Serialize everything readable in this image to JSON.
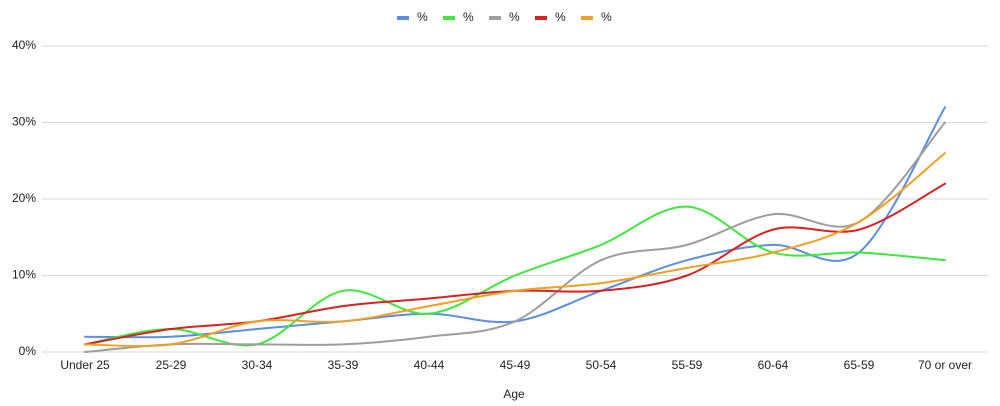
{
  "chart_data": {
    "type": "line",
    "x_label": "Age",
    "categories": [
      "Under 25",
      "25-29",
      "30-34",
      "35-39",
      "40-44",
      "45-49",
      "50-54",
      "55-59",
      "60-64",
      "65-59",
      "70 or over"
    ],
    "series": [
      {
        "name": "%",
        "color": "#5a8ee0",
        "values": [
          2,
          2,
          3,
          4,
          5,
          4,
          8,
          12,
          14,
          13,
          32
        ]
      },
      {
        "name": "%",
        "color": "#3ee83e",
        "values": [
          1,
          3,
          1,
          8,
          5,
          10,
          14,
          19,
          13,
          13,
          12
        ]
      },
      {
        "name": "%",
        "color": "#9e9e9e",
        "values": [
          0,
          1,
          1,
          1,
          2,
          4,
          12,
          14,
          18,
          17,
          30
        ]
      },
      {
        "name": "%",
        "color": "#d62222",
        "values": [
          1,
          3,
          4,
          6,
          7,
          8,
          8,
          10,
          16,
          16,
          22
        ]
      },
      {
        "name": "%",
        "color": "#f0a024",
        "values": [
          1,
          1,
          4,
          4,
          6,
          8,
          9,
          11,
          13,
          17,
          26
        ]
      }
    ],
    "ylim": [
      0,
      40
    ],
    "yticks": [
      {
        "value": 0,
        "label": "0%"
      },
      {
        "value": 10,
        "label": "10%"
      },
      {
        "value": 20,
        "label": "20%"
      },
      {
        "value": 30,
        "label": "30%"
      },
      {
        "value": 40,
        "label": "40%"
      }
    ],
    "grid": true,
    "legend": "top",
    "smooth": true
  }
}
